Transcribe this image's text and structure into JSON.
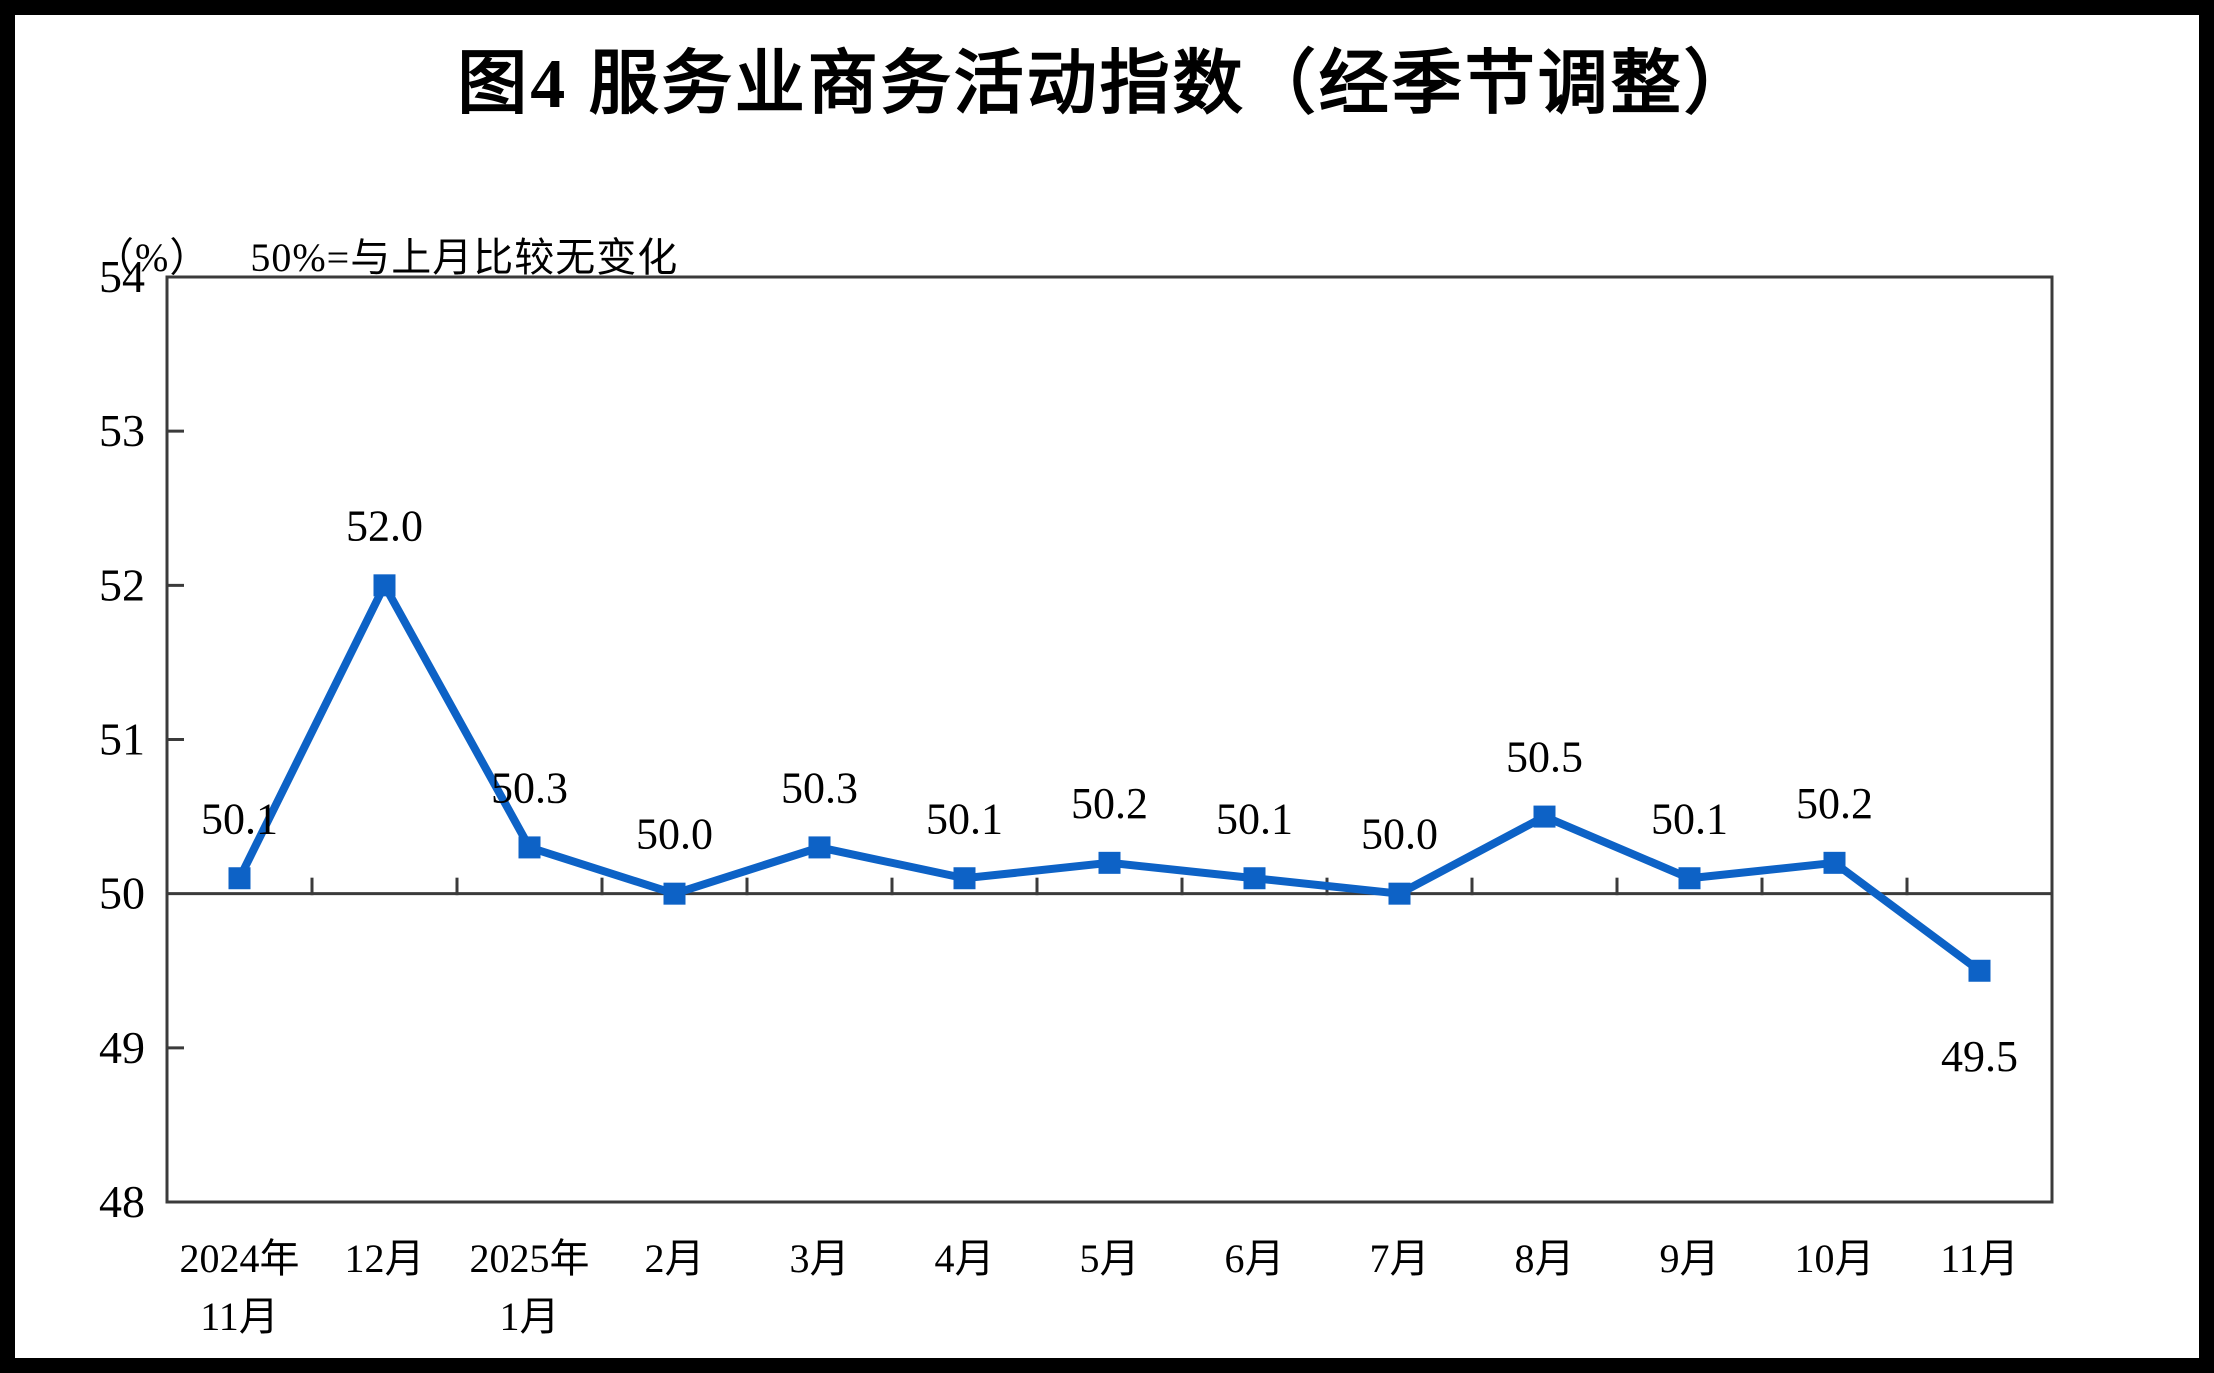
{
  "chart_data": {
    "type": "line",
    "title": "图4 服务业商务活动指数（经季节调整）",
    "unit": "（%）",
    "note": "50%=与上月比较无变化",
    "categories": [
      "2024年11月",
      "12月",
      "2025年1月",
      "2月",
      "3月",
      "4月",
      "5月",
      "6月",
      "7月",
      "8月",
      "9月",
      "10月",
      "11月"
    ],
    "category_lines": [
      [
        "2024年",
        "11月"
      ],
      [
        "12月"
      ],
      [
        "2025年",
        "1月"
      ],
      [
        "2月"
      ],
      [
        "3月"
      ],
      [
        "4月"
      ],
      [
        "5月"
      ],
      [
        "6月"
      ],
      [
        "7月"
      ],
      [
        "8月"
      ],
      [
        "9月"
      ],
      [
        "10月"
      ],
      [
        "11月"
      ]
    ],
    "series": [
      {
        "name": "服务业商务活动指数",
        "values": [
          50.1,
          52.0,
          50.3,
          50.0,
          50.3,
          50.1,
          50.2,
          50.1,
          50.0,
          50.5,
          50.1,
          50.2,
          49.5
        ]
      }
    ],
    "data_labels": [
      "50.1",
      "52.0",
      "50.3",
      "50.0",
      "50.3",
      "50.1",
      "50.2",
      "50.1",
      "50.0",
      "50.5",
      "50.1",
      "50.2",
      "49.5"
    ],
    "ylim": [
      48,
      54
    ],
    "yticks": [
      48,
      49,
      50,
      51,
      52,
      53,
      54
    ],
    "reference_line": 50,
    "grid": false,
    "legend": "none",
    "line_color": "#0d62c6",
    "marker": "square",
    "axis_color": "#3b3b3b",
    "text_color": "#000000"
  }
}
